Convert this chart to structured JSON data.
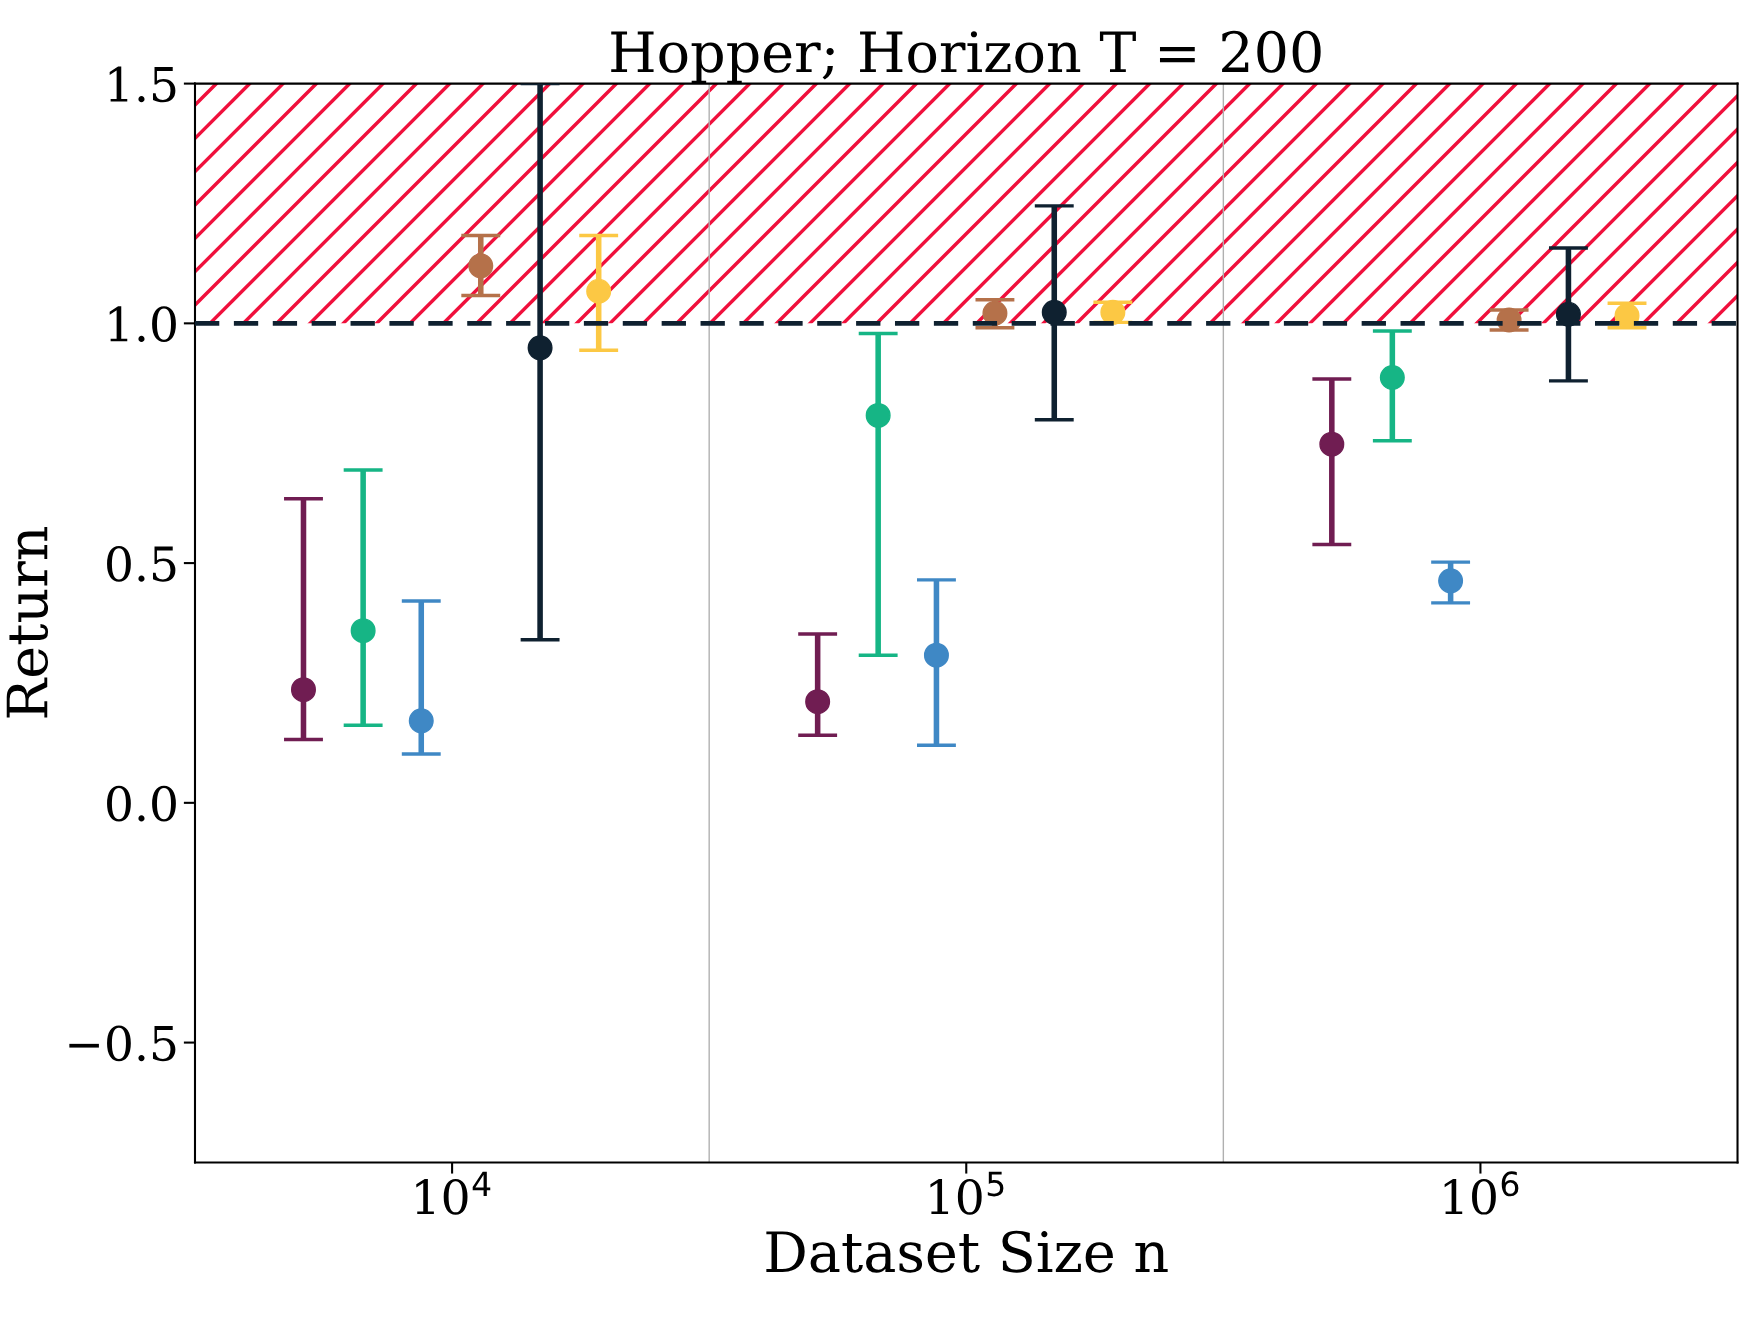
{
  "chart_data": {
    "type": "scatter",
    "title": "Hopper; Horizon T = 200",
    "xlabel": "Dataset Size n",
    "ylabel": "Return",
    "log": "x",
    "xlim": [
      3162,
      3162278
    ],
    "ylim": [
      -0.75,
      1.5
    ],
    "xticks": [
      {
        "value": 10000,
        "label": "10$^{4}$"
      },
      {
        "value": 100000,
        "label": "10$^{5}$"
      },
      {
        "value": 1000000,
        "label": "10$^{6}$"
      }
    ],
    "yticks": [
      {
        "value": -0.5,
        "label": "−0.5"
      },
      {
        "value": 0.0,
        "label": "0.0"
      },
      {
        "value": 0.5,
        "label": "0.5"
      },
      {
        "value": 1.0,
        "label": "1.0"
      },
      {
        "value": 1.5,
        "label": "1.5"
      }
    ],
    "grid": false,
    "legend": false,
    "marker": "circle",
    "series": [
      {
        "color": "#701d52",
        "x": [
          5140,
          51400,
          514000
        ],
        "values": [
          0.236,
          0.211,
          0.748
        ],
        "errors": [
          [
            0.132,
            0.634
          ],
          [
            0.141,
            0.352
          ],
          [
            0.539,
            0.884
          ]
        ]
      },
      {
        "color": "#16b585",
        "x": [
          6714,
          67400,
          674000
        ],
        "values": [
          0.359,
          0.808,
          0.887
        ],
        "errors": [
          [
            0.162,
            0.694
          ],
          [
            0.308,
            0.979
          ],
          [
            0.755,
            0.984
          ]
        ]
      },
      {
        "color": "#3f88c5",
        "x": [
          8710,
          87500,
          875000
        ],
        "values": [
          0.171,
          0.308,
          0.463
        ],
        "errors": [
          [
            0.102,
            0.421
          ],
          [
            0.12,
            0.465
          ],
          [
            0.417,
            0.502
          ]
        ]
      },
      {
        "color": "#b5714a",
        "x": [
          11370,
          113700,
          1137000
        ],
        "values": [
          1.12,
          1.021,
          1.007
        ],
        "errors": [
          [
            1.058,
            1.183
          ],
          [
            0.991,
            1.049
          ],
          [
            0.986,
            1.028
          ]
        ]
      },
      {
        "color": "#0f2130",
        "x": [
          14830,
          148300,
          1483000
        ],
        "values": [
          0.949,
          1.023,
          1.019
        ],
        "errors": [
          [
            0.34,
            1.5
          ],
          [
            0.799,
            1.245
          ],
          [
            0.88,
            1.157
          ]
        ]
      },
      {
        "color": "#fcc844",
        "x": [
          19280,
          192800,
          1928000
        ],
        "values": [
          1.067,
          1.023,
          1.016
        ],
        "errors": [
          [
            0.944,
            1.183
          ],
          [
            1.002,
            1.044
          ],
          [
            0.991,
            1.042
          ]
        ]
      }
    ],
    "ref_lines": [
      {
        "axis": "y",
        "value": 1.0,
        "color": "#0f2130",
        "line_style": "dashed"
      },
      {
        "axis": "x",
        "value": 31623,
        "color": "#b0b0b0",
        "line_style": "solid"
      },
      {
        "axis": "x",
        "value": 316228,
        "color": "#b0b0b0",
        "line_style": "solid"
      }
    ],
    "bands": [
      {
        "axis": "y",
        "from": 1.0,
        "to": 1.5,
        "color": "#f0103c"
      }
    ]
  }
}
